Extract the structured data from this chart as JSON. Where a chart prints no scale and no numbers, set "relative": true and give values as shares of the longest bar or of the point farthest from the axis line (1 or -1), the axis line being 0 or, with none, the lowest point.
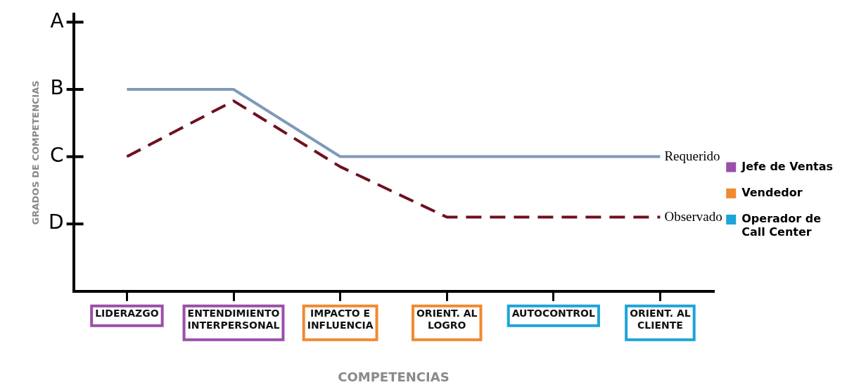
{
  "chart_data": {
    "type": "line",
    "xlabel": "COMPETENCIAS",
    "ylabel": "GRADOS DE COMPETENCIAS",
    "categories": [
      "LIDERAZGO",
      "ENTENDIMIENTO\nINTERPERSONAL",
      "IMPACTO E\nINFLUENCIA",
      "ORIENT. AL\nLOGRO",
      "AUTOCONTROL",
      "ORIENT. AL\nCLIENTE"
    ],
    "colors": [
      "#9b4fa8",
      "#9b4fa8",
      "#f08a30",
      "#f08a30",
      "#1da4d8",
      "#1da4d8"
    ],
    "relative": true,
    "annotations": [
      "A",
      "B",
      "C",
      "D"
    ],
    "grid": false,
    "legend": "right",
    "series": [
      {
        "name": "Requerido",
        "color": "#7f9aba",
        "line_style": "solid",
        "values": [
          1,
          1,
          0.667,
          0.667,
          0.667,
          0.667
        ]
      },
      {
        "name": "Observado",
        "color": "#6e1020",
        "line_style": "dashed",
        "values": [
          0.667,
          0.943,
          0.617,
          0.367,
          0.367,
          0.367
        ]
      },
      {
        "name": "Jefe de Ventas",
        "type": "bar",
        "color": "#9b4fa8",
        "values": [
          null,
          null,
          null,
          null,
          null,
          null
        ]
      },
      {
        "name": "Vendedor",
        "type": "bar",
        "color": "#f08a30",
        "values": [
          null,
          null,
          null,
          null,
          null,
          null
        ]
      },
      {
        "name": "Operador de\nCall Center",
        "type": "bar",
        "color": "#1da4d8",
        "values": [
          null,
          null,
          null,
          null,
          null,
          null
        ]
      }
    ]
  }
}
